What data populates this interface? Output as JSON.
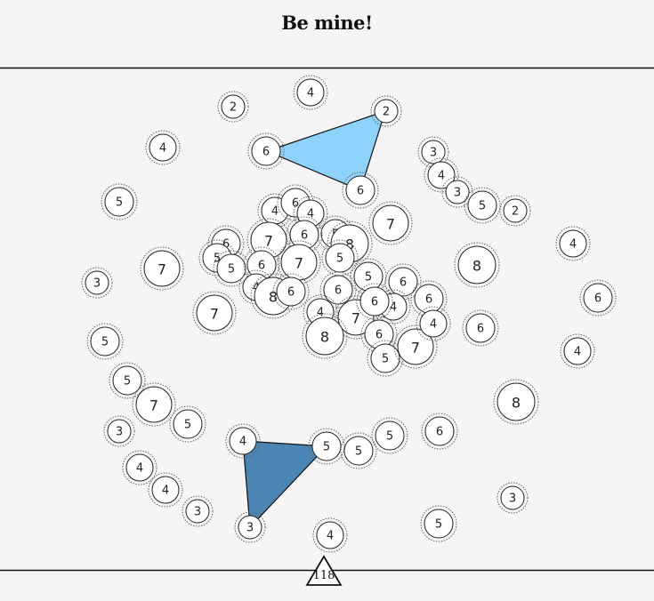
{
  "title": "Be mine!",
  "counter": "118",
  "colors": {
    "background": "#f6f4f5",
    "line": "#111111",
    "triangle_light": "#8dd2fb",
    "triangle_dark": "#4a85b3",
    "node_fill": "#ffffff",
    "node_stroke": "#222222",
    "halo_stroke": "#666666"
  },
  "nodes": [
    {
      "value": "4"
    },
    {
      "value": "2"
    },
    {
      "value": "2"
    },
    {
      "value": "4"
    },
    {
      "value": "6"
    },
    {
      "value": "6"
    },
    {
      "value": "3"
    },
    {
      "value": "4"
    },
    {
      "value": "3"
    },
    {
      "value": "5"
    },
    {
      "value": "2"
    },
    {
      "value": "5"
    },
    {
      "value": "7"
    },
    {
      "value": "4"
    },
    {
      "value": "6"
    },
    {
      "value": "4"
    },
    {
      "value": "6"
    },
    {
      "value": "7"
    },
    {
      "value": "6"
    },
    {
      "value": "5"
    },
    {
      "value": "8"
    },
    {
      "value": "8"
    },
    {
      "value": "4"
    },
    {
      "value": "5"
    },
    {
      "value": "5"
    },
    {
      "value": "6"
    },
    {
      "value": "7"
    },
    {
      "value": "5"
    },
    {
      "value": "3"
    },
    {
      "value": "7"
    },
    {
      "value": "6"
    },
    {
      "value": "5"
    },
    {
      "value": "6"
    },
    {
      "value": "6"
    },
    {
      "value": "4"
    },
    {
      "value": "8"
    },
    {
      "value": "6"
    },
    {
      "value": "6"
    },
    {
      "value": "4"
    },
    {
      "value": "7"
    },
    {
      "value": "7"
    },
    {
      "value": "4"
    },
    {
      "value": "6"
    },
    {
      "value": "5"
    },
    {
      "value": "8"
    },
    {
      "value": "6"
    },
    {
      "value": "5"
    },
    {
      "value": "7"
    },
    {
      "value": "4"
    },
    {
      "value": "5"
    },
    {
      "value": "6"
    },
    {
      "value": "7"
    },
    {
      "value": "3"
    },
    {
      "value": "8"
    },
    {
      "value": "5"
    },
    {
      "value": "4"
    },
    {
      "value": "5"
    },
    {
      "value": "5"
    },
    {
      "value": "5"
    },
    {
      "value": "6"
    },
    {
      "value": "4"
    },
    {
      "value": "4"
    },
    {
      "value": "4"
    },
    {
      "value": "3"
    },
    {
      "value": "3"
    },
    {
      "value": "3"
    },
    {
      "value": "4"
    },
    {
      "value": "5"
    }
  ]
}
